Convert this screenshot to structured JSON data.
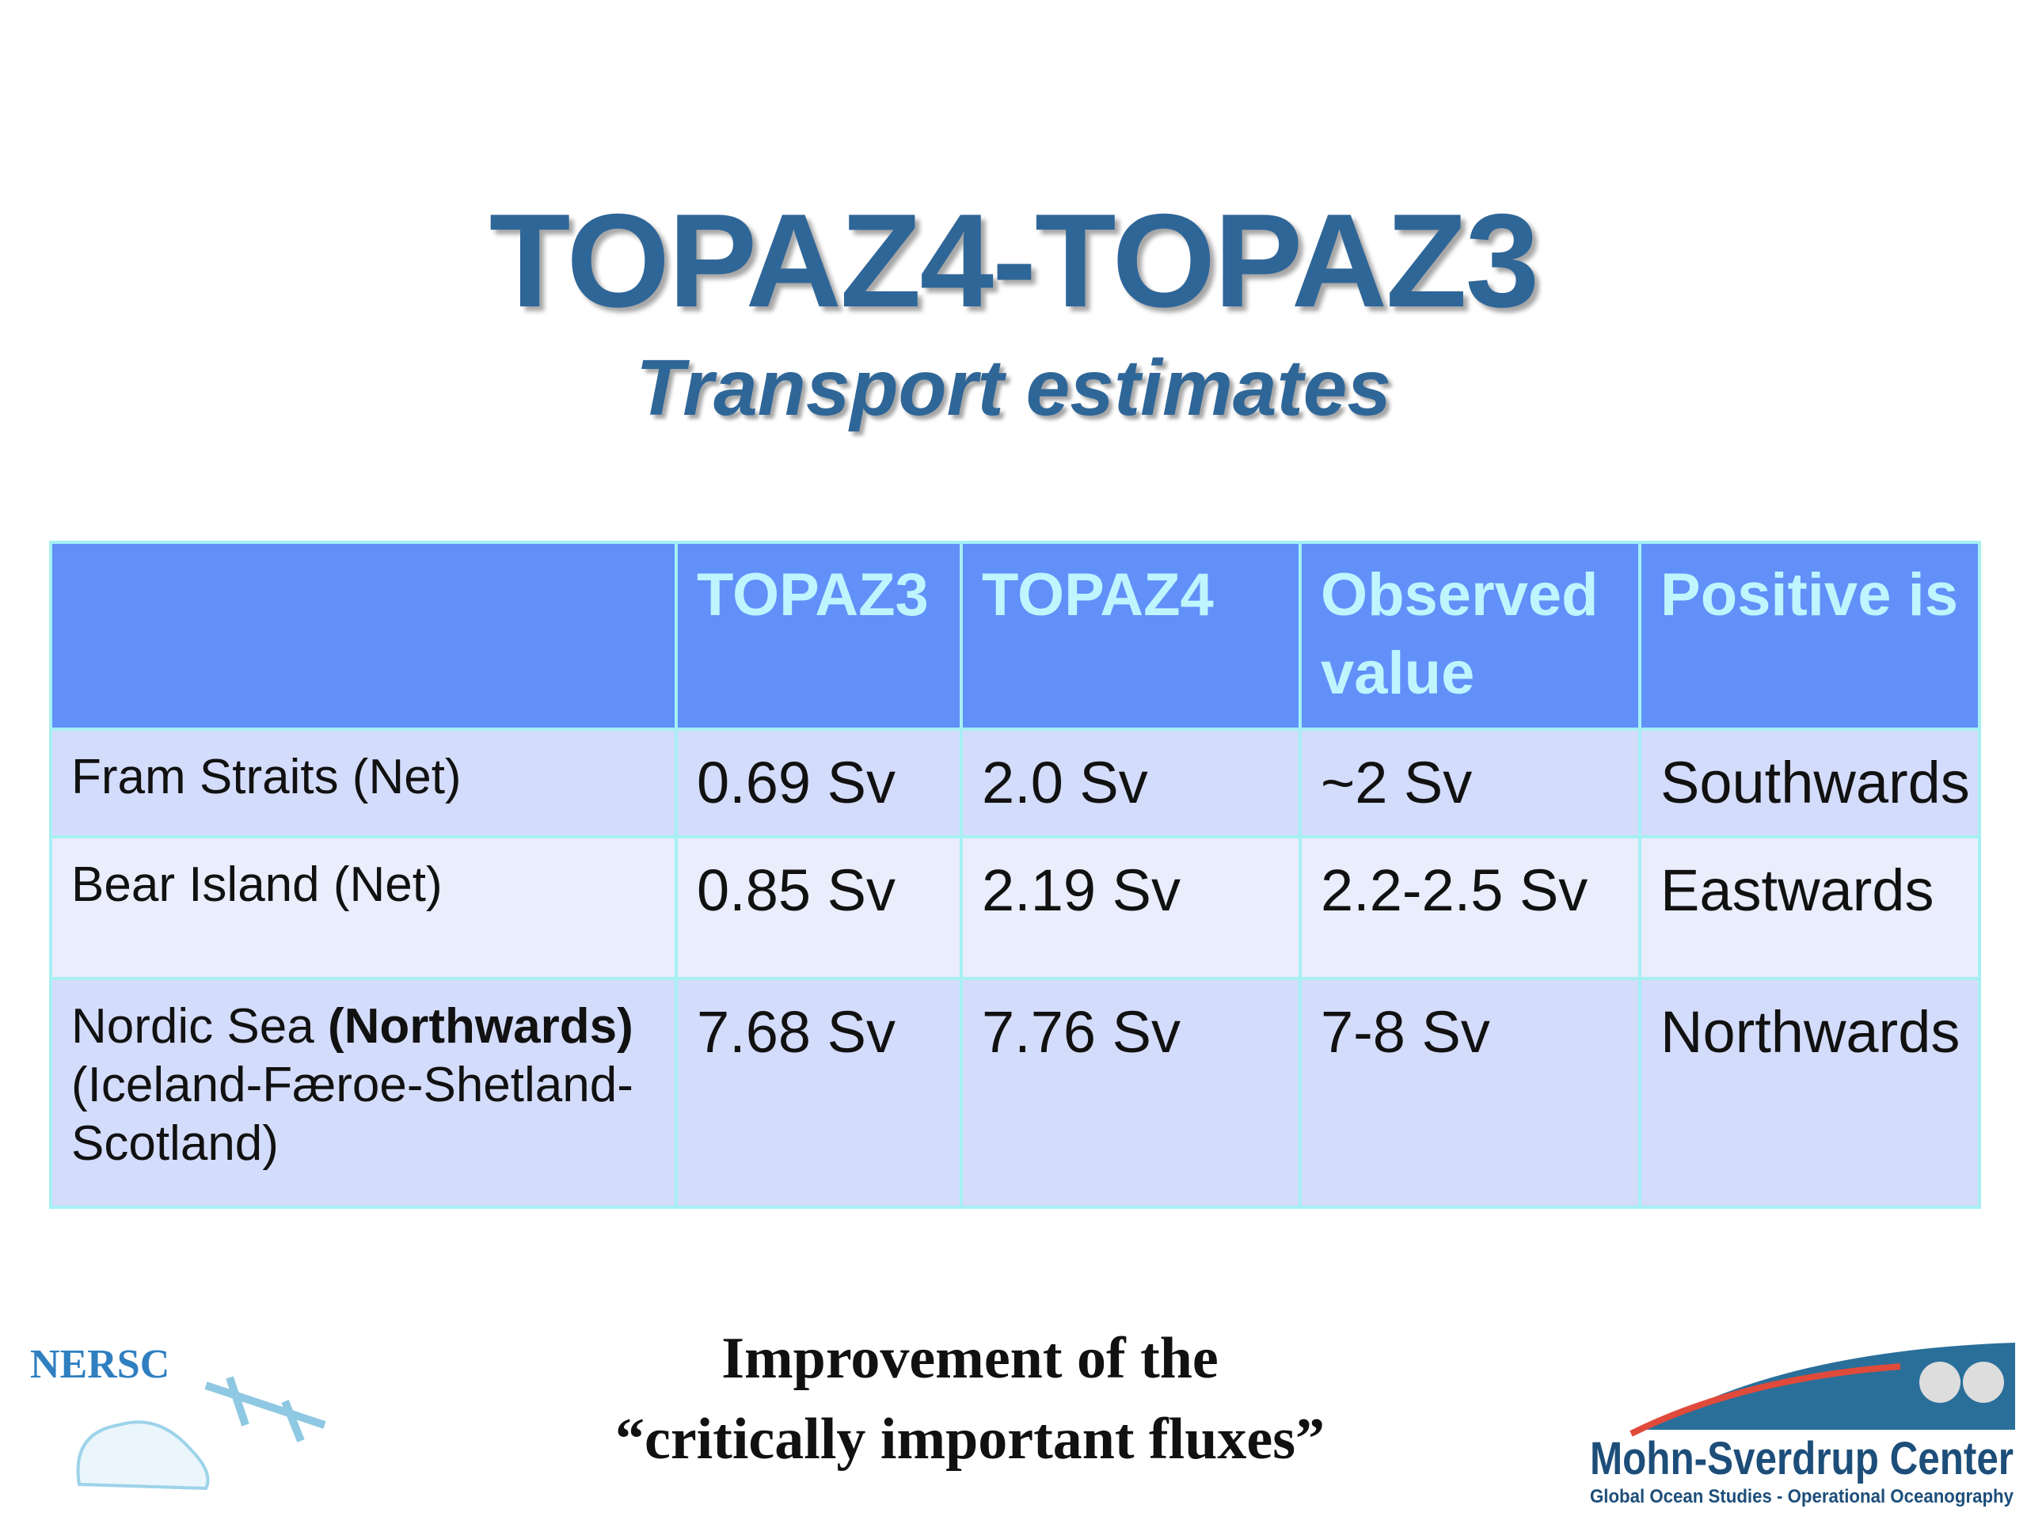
{
  "header": {
    "title": "TOPAZ4-TOPAZ3",
    "subtitle": "Transport estimates"
  },
  "table": {
    "columns": [
      "TOPAZ3",
      "TOPAZ4",
      "Observed value",
      "Positive is"
    ],
    "rows": [
      {
        "label": "Fram Straits (Net)",
        "cells": [
          "0.69 Sv",
          "2.0 Sv",
          "~2 Sv",
          "Southwards"
        ]
      },
      {
        "label": "Bear Island (Net)",
        "cells": [
          "0.85 Sv",
          "2.19 Sv",
          "2.2-2.5 Sv",
          "Eastwards"
        ]
      },
      {
        "label": "Nordic Sea",
        "label_bold": "(Northwards)",
        "label_note": "(Iceland-Færoe-Shetland-Scotland)",
        "cells": [
          "7.68 Sv",
          "7.76 Sv",
          "7-8 Sv",
          "Northwards"
        ]
      }
    ]
  },
  "footer": {
    "lines": [
      "Improvement of the",
      "“critically important fluxes”"
    ]
  },
  "logos": {
    "left": "NERSC",
    "right": "Mohn-Sverdrup Center",
    "right_tagline": "Global Ocean Studies - Operational Oceanography"
  }
}
